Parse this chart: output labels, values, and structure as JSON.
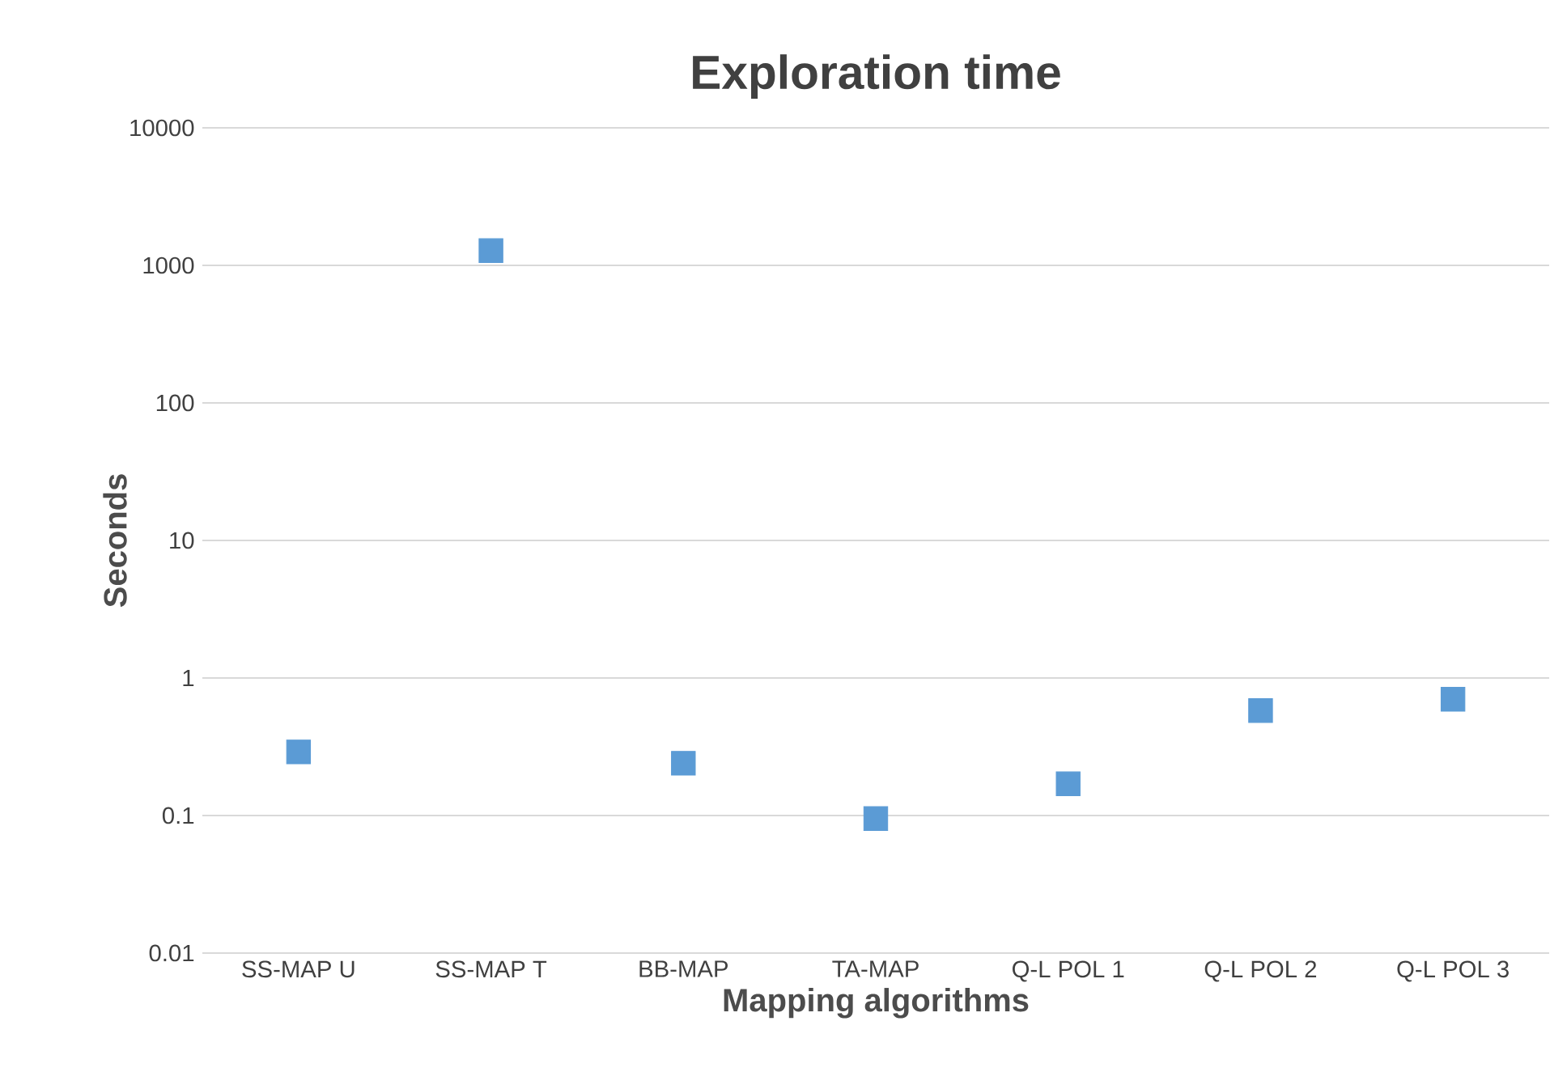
{
  "chart_data": {
    "type": "scatter",
    "title": "Exploration time",
    "xlabel": "Mapping algorithms",
    "ylabel": "Seconds",
    "categories": [
      "SS-MAP U",
      "SS-MAP T",
      "BB-MAP",
      "TA-MAP",
      "Q-L POL 1",
      "Q-L POL 2",
      "Q-L POL 3"
    ],
    "series": [
      {
        "color": "#5b9bd5",
        "values": [
          0.29,
          1280,
          0.24,
          0.095,
          0.17,
          0.58,
          0.7
        ]
      }
    ],
    "log": "y",
    "ylim": [
      0.01,
      10000
    ],
    "yticks": [
      0.01,
      0.1,
      1,
      10,
      100,
      1000,
      10000
    ],
    "grid": "y",
    "marker": "square"
  }
}
